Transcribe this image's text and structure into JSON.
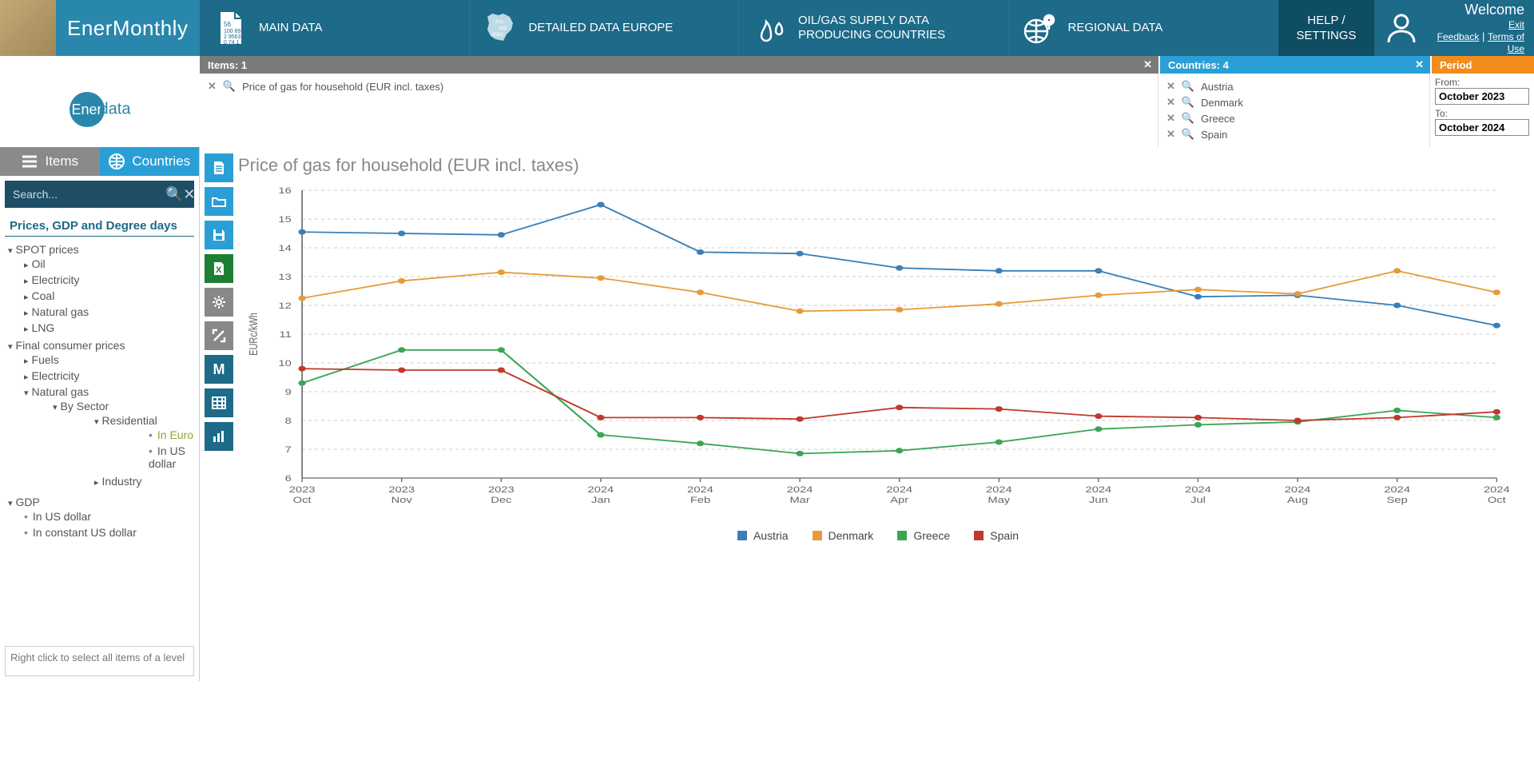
{
  "brand": "EnerMonthly",
  "nav": {
    "main": "MAIN DATA",
    "detailed": "DETAILED DATA EUROPE",
    "oilgas": "OIL/GAS SUPPLY DATA PRODUCING COUNTRIES",
    "regional": "REGIONAL DATA",
    "help": "HELP / SETTINGS"
  },
  "welcome": {
    "title": "Welcome",
    "exit": "Exit",
    "feedback": "Feedback",
    "terms": "Terms of Use"
  },
  "bars": {
    "items_label": "Items: 1",
    "countries_label": "Countries: 4",
    "period_label": "Period"
  },
  "selected_item": "Price of gas for household (EUR incl. taxes)",
  "selected_countries": [
    "Austria",
    "Denmark",
    "Greece",
    "Spain"
  ],
  "period": {
    "from_label": "From:",
    "from_value": "October 2023",
    "to_label": "To:",
    "to_value": "October 2024"
  },
  "side": {
    "tab_items": "Items",
    "tab_countries": "Countries",
    "search_placeholder": "Search...",
    "tree_title": "Prices, GDP and Degree days",
    "hint": "Right click to select all items of a level"
  },
  "tree": {
    "spot": "SPOT prices",
    "spot_children": [
      "Oil",
      "Electricity",
      "Coal",
      "Natural gas",
      "LNG"
    ],
    "final": "Final consumer prices",
    "fuels": "Fuels",
    "elec": "Electricity",
    "ng": "Natural gas",
    "bysector": "By Sector",
    "residential": "Residential",
    "in_euro": "In Euro",
    "in_usd": "In US dollar",
    "industry": "Industry",
    "gdp": "GDP",
    "gdp_usd": "In US dollar",
    "gdp_const": "In constant US dollar"
  },
  "chart": {
    "title": "Price of gas for household (EUR incl. taxes)",
    "y_label": "EURc/kWh",
    "categories": [
      "2023\nOct",
      "2023\nNov",
      "2023\nDec",
      "2024\nJan",
      "2024\nFeb",
      "2024\nMar",
      "2024\nApr",
      "2024\nMay",
      "2024\nJun",
      "2024\nJul",
      "2024\nAug",
      "2024\nSep",
      "2024\nOct"
    ],
    "ylim": [
      6,
      16
    ],
    "ytick_step": 1,
    "grid_color": "#cccccc",
    "axis_color": "#666666",
    "label_fontsize": 11,
    "background_color": "#ffffff",
    "series": [
      {
        "name": "Austria",
        "color": "#3b7fb6",
        "values": [
          14.55,
          14.5,
          14.45,
          15.5,
          13.85,
          13.8,
          13.3,
          13.2,
          13.2,
          12.3,
          12.35,
          12.0,
          11.3
        ]
      },
      {
        "name": "Denmark",
        "color": "#e89a3a",
        "values": [
          12.25,
          12.85,
          13.15,
          12.95,
          12.45,
          11.8,
          11.85,
          12.05,
          12.35,
          12.55,
          12.4,
          13.2,
          12.45
        ]
      },
      {
        "name": "Greece",
        "color": "#3aa655",
        "values": [
          9.3,
          10.45,
          10.45,
          7.5,
          7.2,
          6.85,
          6.95,
          7.25,
          7.7,
          7.85,
          7.95,
          8.35,
          8.1
        ]
      },
      {
        "name": "Spain",
        "color": "#c0392b",
        "values": [
          9.8,
          9.75,
          9.75,
          8.1,
          8.1,
          8.05,
          8.45,
          8.4,
          8.15,
          8.1,
          8.0,
          8.1,
          8.3
        ]
      }
    ]
  },
  "colors": {
    "brand_bg": "#2a87ac",
    "nav_bg": "#1d6a89",
    "help_bg": "#0f4d63",
    "items_tab": "#8a8a8a",
    "countries_tab": "#2a9fd6",
    "period_bar": "#f28c1c"
  }
}
